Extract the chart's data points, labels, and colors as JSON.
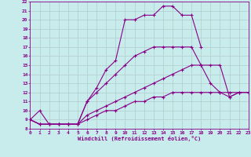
{
  "xlabel": "Windchill (Refroidissement éolien,°C)",
  "bg_color": "#c8ecec",
  "grid_color": "#b0cccc",
  "line_color": "#880088",
  "xmin": 0,
  "xmax": 23,
  "ymin": 8,
  "ymax": 22,
  "lines": [
    {
      "x": [
        0,
        1,
        2,
        3,
        4,
        5,
        6,
        7,
        8,
        9,
        10,
        11,
        12,
        13,
        14,
        15,
        16,
        17,
        18,
        19,
        20,
        21,
        22,
        23
      ],
      "y": [
        9,
        10,
        8.5,
        8.5,
        8.5,
        8.5,
        11,
        12.5,
        14.5,
        15.5,
        20,
        20,
        20.5,
        20.5,
        21.5,
        21.5,
        20.5,
        20.5,
        17,
        null,
        null,
        null,
        null,
        null
      ]
    },
    {
      "x": [
        0,
        1,
        2,
        3,
        4,
        5,
        6,
        7,
        8,
        9,
        10,
        11,
        12,
        13,
        14,
        15,
        16,
        17,
        18,
        19,
        20,
        21,
        22,
        23
      ],
      "y": [
        9,
        8.5,
        8.5,
        8.5,
        8.5,
        8.5,
        11,
        12,
        13,
        14,
        15,
        16,
        16.5,
        17,
        17,
        17,
        17,
        17,
        15,
        13,
        12,
        12,
        12,
        null
      ]
    },
    {
      "x": [
        0,
        1,
        2,
        3,
        4,
        5,
        6,
        7,
        8,
        9,
        10,
        11,
        12,
        13,
        14,
        15,
        16,
        17,
        18,
        19,
        20,
        21,
        22,
        23
      ],
      "y": [
        9,
        8.5,
        8.5,
        8.5,
        8.5,
        8.5,
        9.5,
        10,
        10.5,
        11,
        11.5,
        12,
        12.5,
        13,
        13.5,
        14,
        14.5,
        15,
        15,
        15,
        15,
        11.5,
        12,
        12
      ]
    },
    {
      "x": [
        0,
        1,
        2,
        3,
        4,
        5,
        6,
        7,
        8,
        9,
        10,
        11,
        12,
        13,
        14,
        15,
        16,
        17,
        18,
        19,
        20,
        21,
        22,
        23
      ],
      "y": [
        9,
        8.5,
        8.5,
        8.5,
        8.5,
        8.5,
        9,
        9.5,
        10,
        10,
        10.5,
        11,
        11,
        11.5,
        11.5,
        12,
        12,
        12,
        12,
        12,
        12,
        11.5,
        12,
        12
      ]
    }
  ]
}
